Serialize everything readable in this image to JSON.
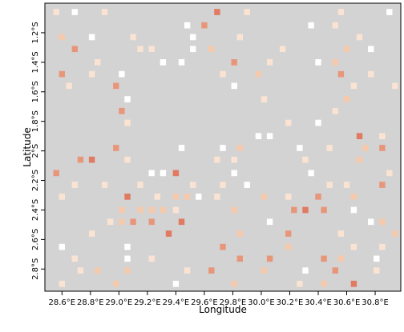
{
  "chart_data": {
    "type": "heatmap",
    "title": "",
    "xlabel": "Longitude",
    "ylabel": "Latitude",
    "xlim": [
      28.48,
      30.98
    ],
    "ylim": [
      -2.95,
      -1.0
    ],
    "x_ticks": [
      {
        "value": 28.6,
        "label": "28.6°E"
      },
      {
        "value": 28.8,
        "label": "28.8°E"
      },
      {
        "value": 29.0,
        "label": "29.0°E"
      },
      {
        "value": 29.2,
        "label": "29.2°E"
      },
      {
        "value": 29.4,
        "label": "29.4°E"
      },
      {
        "value": 29.6,
        "label": "29.6°E"
      },
      {
        "value": 29.8,
        "label": "29.8°E"
      },
      {
        "value": 30.0,
        "label": "30.0°E"
      },
      {
        "value": 30.2,
        "label": "30.2°E"
      },
      {
        "value": 30.4,
        "label": "30.4°E"
      },
      {
        "value": 30.6,
        "label": "30.6°E"
      },
      {
        "value": 30.8,
        "label": "30.8°E"
      }
    ],
    "y_ticks": [
      {
        "value": -1.2,
        "label": "1.2°S"
      },
      {
        "value": -1.4,
        "label": "1.4°S"
      },
      {
        "value": -1.6,
        "label": "1.6°S"
      },
      {
        "value": -1.8,
        "label": "1.8°S"
      },
      {
        "value": -2.0,
        "label": "2°S"
      },
      {
        "value": -2.2,
        "label": "2.2°S"
      },
      {
        "value": -2.4,
        "label": "2.4°S"
      },
      {
        "value": -2.6,
        "label": "2.6°S"
      },
      {
        "value": -2.8,
        "label": "2.8°S"
      }
    ],
    "cell_size_deg": 0.0417,
    "grid_lines": false,
    "legend": "none",
    "colors": {
      "background": "#d3d3d3",
      "level_0": "#ffffff",
      "level_1": "#fbe3d3",
      "level_2": "#f5c9ac",
      "level_3": "#e8967a",
      "level_4": "#e07a60"
    },
    "cells": [
      {
        "lon": 28.56,
        "lat": -1.06,
        "v": 1
      },
      {
        "lon": 28.69,
        "lat": -1.06,
        "v": 0
      },
      {
        "lon": 28.9,
        "lat": -1.06,
        "v": 1
      },
      {
        "lon": 29.69,
        "lat": -1.06,
        "v": 4
      },
      {
        "lon": 29.9,
        "lat": -1.06,
        "v": 1
      },
      {
        "lon": 30.56,
        "lat": -1.06,
        "v": 1
      },
      {
        "lon": 30.9,
        "lat": -1.06,
        "v": 0
      },
      {
        "lon": 29.48,
        "lat": -1.15,
        "v": 0
      },
      {
        "lon": 29.6,
        "lat": -1.15,
        "v": 3
      },
      {
        "lon": 30.35,
        "lat": -1.15,
        "v": 0
      },
      {
        "lon": 30.52,
        "lat": -1.15,
        "v": 1
      },
      {
        "lon": 28.6,
        "lat": -1.23,
        "v": 2
      },
      {
        "lon": 28.81,
        "lat": -1.23,
        "v": 0
      },
      {
        "lon": 29.1,
        "lat": -1.23,
        "v": 1
      },
      {
        "lon": 29.52,
        "lat": -1.23,
        "v": 0
      },
      {
        "lon": 29.85,
        "lat": -1.23,
        "v": 1
      },
      {
        "lon": 30.69,
        "lat": -1.23,
        "v": 1
      },
      {
        "lon": 28.69,
        "lat": -1.31,
        "v": 3
      },
      {
        "lon": 29.15,
        "lat": -1.31,
        "v": 1
      },
      {
        "lon": 29.23,
        "lat": -1.31,
        "v": 1
      },
      {
        "lon": 29.52,
        "lat": -1.31,
        "v": 0
      },
      {
        "lon": 29.65,
        "lat": -1.31,
        "v": 2
      },
      {
        "lon": 30.15,
        "lat": -1.31,
        "v": 1
      },
      {
        "lon": 30.6,
        "lat": -1.31,
        "v": 2
      },
      {
        "lon": 30.77,
        "lat": -1.31,
        "v": 0
      },
      {
        "lon": 28.85,
        "lat": -1.4,
        "v": 1
      },
      {
        "lon": 29.31,
        "lat": -1.4,
        "v": 0
      },
      {
        "lon": 29.44,
        "lat": -1.4,
        "v": 0
      },
      {
        "lon": 29.81,
        "lat": -1.4,
        "v": 3
      },
      {
        "lon": 30.06,
        "lat": -1.4,
        "v": 1
      },
      {
        "lon": 30.4,
        "lat": -1.4,
        "v": 0
      },
      {
        "lon": 30.52,
        "lat": -1.4,
        "v": 2
      },
      {
        "lon": 28.6,
        "lat": -1.48,
        "v": 3
      },
      {
        "lon": 28.81,
        "lat": -1.48,
        "v": 1
      },
      {
        "lon": 29.02,
        "lat": -1.48,
        "v": 0
      },
      {
        "lon": 29.73,
        "lat": -1.48,
        "v": 1
      },
      {
        "lon": 29.98,
        "lat": -1.48,
        "v": 2
      },
      {
        "lon": 30.56,
        "lat": -1.48,
        "v": 3
      },
      {
        "lon": 30.77,
        "lat": -1.48,
        "v": 1
      },
      {
        "lon": 28.65,
        "lat": -1.56,
        "v": 1
      },
      {
        "lon": 28.98,
        "lat": -1.56,
        "v": 3
      },
      {
        "lon": 29.81,
        "lat": -1.56,
        "v": 0
      },
      {
        "lon": 30.65,
        "lat": -1.56,
        "v": 1
      },
      {
        "lon": 30.94,
        "lat": -1.56,
        "v": 1
      },
      {
        "lon": 29.06,
        "lat": -1.65,
        "v": 0
      },
      {
        "lon": 30.02,
        "lat": -1.65,
        "v": 1
      },
      {
        "lon": 30.6,
        "lat": -1.65,
        "v": 2
      },
      {
        "lon": 29.02,
        "lat": -1.73,
        "v": 3
      },
      {
        "lon": 30.52,
        "lat": -1.73,
        "v": 1
      },
      {
        "lon": 29.06,
        "lat": -1.81,
        "v": 1
      },
      {
        "lon": 30.19,
        "lat": -1.81,
        "v": 1
      },
      {
        "lon": 30.4,
        "lat": -1.81,
        "v": 0
      },
      {
        "lon": 29.98,
        "lat": -1.9,
        "v": 0
      },
      {
        "lon": 30.06,
        "lat": -1.9,
        "v": 0
      },
      {
        "lon": 30.69,
        "lat": -1.9,
        "v": 4
      },
      {
        "lon": 30.85,
        "lat": -1.9,
        "v": 1
      },
      {
        "lon": 28.98,
        "lat": -1.98,
        "v": 3
      },
      {
        "lon": 29.44,
        "lat": -1.98,
        "v": 0
      },
      {
        "lon": 29.73,
        "lat": -1.98,
        "v": 0
      },
      {
        "lon": 29.85,
        "lat": -1.98,
        "v": 2
      },
      {
        "lon": 30.27,
        "lat": -1.98,
        "v": 0
      },
      {
        "lon": 30.48,
        "lat": -1.98,
        "v": 1
      },
      {
        "lon": 30.73,
        "lat": -1.98,
        "v": 2
      },
      {
        "lon": 30.85,
        "lat": -1.98,
        "v": 3
      },
      {
        "lon": 28.73,
        "lat": -2.06,
        "v": 3
      },
      {
        "lon": 28.81,
        "lat": -2.06,
        "v": 4
      },
      {
        "lon": 29.06,
        "lat": -2.06,
        "v": 1
      },
      {
        "lon": 29.69,
        "lat": -2.06,
        "v": 1
      },
      {
        "lon": 29.81,
        "lat": -2.06,
        "v": 1
      },
      {
        "lon": 30.31,
        "lat": -2.06,
        "v": 1
      },
      {
        "lon": 30.69,
        "lat": -2.06,
        "v": 2
      },
      {
        "lon": 28.56,
        "lat": -2.15,
        "v": 3
      },
      {
        "lon": 29.23,
        "lat": -2.15,
        "v": 0
      },
      {
        "lon": 29.31,
        "lat": -2.15,
        "v": 0
      },
      {
        "lon": 29.4,
        "lat": -2.15,
        "v": 4
      },
      {
        "lon": 29.81,
        "lat": -2.15,
        "v": 0
      },
      {
        "lon": 30.35,
        "lat": -2.15,
        "v": 0
      },
      {
        "lon": 30.9,
        "lat": -2.15,
        "v": 1
      },
      {
        "lon": 28.69,
        "lat": -2.23,
        "v": 1
      },
      {
        "lon": 28.9,
        "lat": -2.23,
        "v": 1
      },
      {
        "lon": 29.15,
        "lat": -2.23,
        "v": 1
      },
      {
        "lon": 29.52,
        "lat": -2.23,
        "v": 1
      },
      {
        "lon": 29.73,
        "lat": -2.23,
        "v": 1
      },
      {
        "lon": 29.9,
        "lat": -2.23,
        "v": 0
      },
      {
        "lon": 30.48,
        "lat": -2.23,
        "v": 1
      },
      {
        "lon": 30.6,
        "lat": -2.23,
        "v": 1
      },
      {
        "lon": 30.85,
        "lat": -2.23,
        "v": 3
      },
      {
        "lon": 28.6,
        "lat": -2.31,
        "v": 1
      },
      {
        "lon": 29.06,
        "lat": -2.31,
        "v": 4
      },
      {
        "lon": 29.27,
        "lat": -2.31,
        "v": 1
      },
      {
        "lon": 29.4,
        "lat": -2.31,
        "v": 2
      },
      {
        "lon": 29.48,
        "lat": -2.31,
        "v": 2
      },
      {
        "lon": 29.56,
        "lat": -2.31,
        "v": 0
      },
      {
        "lon": 29.69,
        "lat": -2.31,
        "v": 1
      },
      {
        "lon": 30.02,
        "lat": -2.31,
        "v": 2
      },
      {
        "lon": 30.19,
        "lat": -2.31,
        "v": 1
      },
      {
        "lon": 30.4,
        "lat": -2.31,
        "v": 3
      },
      {
        "lon": 30.65,
        "lat": -2.31,
        "v": 2
      },
      {
        "lon": 29.02,
        "lat": -2.4,
        "v": 2
      },
      {
        "lon": 29.15,
        "lat": -2.4,
        "v": 2
      },
      {
        "lon": 29.23,
        "lat": -2.4,
        "v": 2
      },
      {
        "lon": 29.31,
        "lat": -2.4,
        "v": 2
      },
      {
        "lon": 29.4,
        "lat": -2.4,
        "v": 1
      },
      {
        "lon": 29.81,
        "lat": -2.4,
        "v": 2
      },
      {
        "lon": 30.23,
        "lat": -2.4,
        "v": 3
      },
      {
        "lon": 30.31,
        "lat": -2.4,
        "v": 4
      },
      {
        "lon": 30.44,
        "lat": -2.4,
        "v": 3
      },
      {
        "lon": 30.65,
        "lat": -2.4,
        "v": 0
      },
      {
        "lon": 28.94,
        "lat": -2.48,
        "v": 1
      },
      {
        "lon": 29.02,
        "lat": -2.48,
        "v": 2
      },
      {
        "lon": 29.1,
        "lat": -2.48,
        "v": 3
      },
      {
        "lon": 29.23,
        "lat": -2.48,
        "v": 3
      },
      {
        "lon": 29.44,
        "lat": -2.48,
        "v": 4
      },
      {
        "lon": 30.06,
        "lat": -2.48,
        "v": 0
      },
      {
        "lon": 30.77,
        "lat": -2.48,
        "v": 0
      },
      {
        "lon": 30.85,
        "lat": -2.48,
        "v": 2
      },
      {
        "lon": 28.81,
        "lat": -2.56,
        "v": 1
      },
      {
        "lon": 29.35,
        "lat": -2.56,
        "v": 4
      },
      {
        "lon": 29.85,
        "lat": -2.56,
        "v": 2
      },
      {
        "lon": 30.19,
        "lat": -2.56,
        "v": 3
      },
      {
        "lon": 30.56,
        "lat": -2.56,
        "v": 1
      },
      {
        "lon": 30.94,
        "lat": -2.56,
        "v": 2
      },
      {
        "lon": 28.6,
        "lat": -2.65,
        "v": 0
      },
      {
        "lon": 29.06,
        "lat": -2.65,
        "v": 0
      },
      {
        "lon": 29.73,
        "lat": -2.65,
        "v": 3
      },
      {
        "lon": 30.19,
        "lat": -2.65,
        "v": 2
      },
      {
        "lon": 30.65,
        "lat": -2.65,
        "v": 1
      },
      {
        "lon": 30.85,
        "lat": -2.65,
        "v": 1
      },
      {
        "lon": 28.69,
        "lat": -2.73,
        "v": 1
      },
      {
        "lon": 29.06,
        "lat": -2.73,
        "v": 0
      },
      {
        "lon": 29.23,
        "lat": -2.73,
        "v": 1
      },
      {
        "lon": 29.85,
        "lat": -2.73,
        "v": 3
      },
      {
        "lon": 30.06,
        "lat": -2.73,
        "v": 3
      },
      {
        "lon": 30.44,
        "lat": -2.73,
        "v": 3
      },
      {
        "lon": 30.56,
        "lat": -2.73,
        "v": 2
      },
      {
        "lon": 30.81,
        "lat": -2.73,
        "v": 0
      },
      {
        "lon": 28.73,
        "lat": -2.81,
        "v": 1
      },
      {
        "lon": 28.85,
        "lat": -2.81,
        "v": 2
      },
      {
        "lon": 29.06,
        "lat": -2.81,
        "v": 2
      },
      {
        "lon": 29.48,
        "lat": -2.81,
        "v": 1
      },
      {
        "lon": 29.65,
        "lat": -2.81,
        "v": 3
      },
      {
        "lon": 30.02,
        "lat": -2.81,
        "v": 2
      },
      {
        "lon": 30.31,
        "lat": -2.81,
        "v": 0
      },
      {
        "lon": 30.52,
        "lat": -2.81,
        "v": 3
      },
      {
        "lon": 30.81,
        "lat": -2.81,
        "v": 1
      },
      {
        "lon": 28.6,
        "lat": -2.9,
        "v": 1
      },
      {
        "lon": 28.98,
        "lat": -2.9,
        "v": 2
      },
      {
        "lon": 29.4,
        "lat": -2.9,
        "v": 0
      },
      {
        "lon": 29.81,
        "lat": -2.9,
        "v": 2
      },
      {
        "lon": 30.27,
        "lat": -2.9,
        "v": 1
      },
      {
        "lon": 30.44,
        "lat": -2.9,
        "v": 2
      },
      {
        "lon": 30.65,
        "lat": -2.9,
        "v": 4
      }
    ]
  }
}
